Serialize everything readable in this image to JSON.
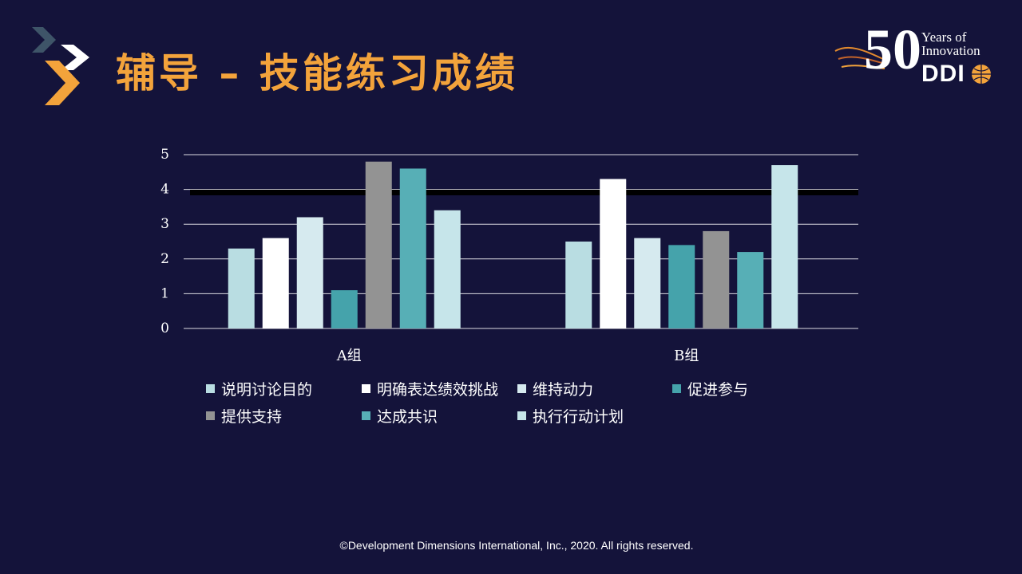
{
  "title": "辅导 – 技能练习成绩",
  "logo": {
    "years_line1": "Years of",
    "years_line2": "Innovation",
    "number": "50",
    "brand": "DDI"
  },
  "footer": "©Development Dimensions International, Inc., 2020. All rights reserved.",
  "colors": {
    "background": "#14133a",
    "title": "#f3a33b",
    "chevron_dark": "#3e5468",
    "chevron_white": "#ffffff",
    "chevron_orange": "#f3a33b"
  },
  "chart_data": {
    "type": "bar",
    "categories": [
      "A组",
      "B组"
    ],
    "ylim": [
      0,
      5
    ],
    "yticks": [
      "0",
      "1",
      "2",
      "3",
      "4",
      "5"
    ],
    "grid": true,
    "legend_position": "bottom",
    "reference_line": 3.9,
    "series": [
      {
        "name": "说明讨论目的",
        "color": "#b9dde2",
        "values": [
          2.3,
          2.5
        ]
      },
      {
        "name": "明确表达绩效挑战",
        "color": "#ffffff",
        "values": [
          2.6,
          4.3
        ]
      },
      {
        "name": "维持动力",
        "color": "#d6eaef",
        "values": [
          3.2,
          2.6
        ]
      },
      {
        "name": "促进参与",
        "color": "#45a3ab",
        "values": [
          1.1,
          2.4
        ]
      },
      {
        "name": "提供支持",
        "color": "#939393",
        "values": [
          4.8,
          2.8
        ]
      },
      {
        "name": "达成共识",
        "color": "#57afb6",
        "values": [
          4.6,
          2.2
        ]
      },
      {
        "name": "执行行动计划",
        "color": "#c6e5ea",
        "values": [
          3.4,
          4.7
        ]
      }
    ]
  }
}
